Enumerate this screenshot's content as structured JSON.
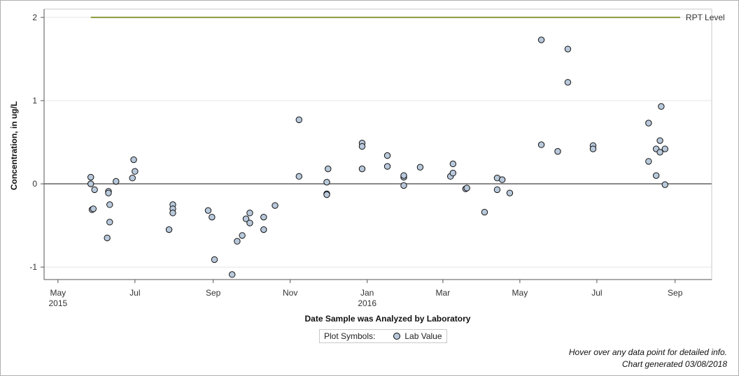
{
  "chart_data": {
    "type": "scatter",
    "title": "",
    "xlabel": "Date Sample was Analyzed by Laboratory",
    "ylabel": "Concentration, in ug/L",
    "xlim": [
      "2015-04-20",
      "2016-09-30"
    ],
    "ylim": [
      -1.15,
      2.1
    ],
    "y_ticks": [
      -1,
      0,
      1,
      2
    ],
    "x_ticks": [
      {
        "date": "2015-05-01",
        "label": "May",
        "sublabel": "2015"
      },
      {
        "date": "2015-07-01",
        "label": "Jul",
        "sublabel": ""
      },
      {
        "date": "2015-09-01",
        "label": "Sep",
        "sublabel": ""
      },
      {
        "date": "2015-11-01",
        "label": "Nov",
        "sublabel": ""
      },
      {
        "date": "2016-01-01",
        "label": "Jan",
        "sublabel": "2016"
      },
      {
        "date": "2016-03-01",
        "label": "Mar",
        "sublabel": ""
      },
      {
        "date": "2016-05-01",
        "label": "May",
        "sublabel": ""
      },
      {
        "date": "2016-07-01",
        "label": "Jul",
        "sublabel": ""
      },
      {
        "date": "2016-09-01",
        "label": "Sep",
        "sublabel": ""
      }
    ],
    "grid": "horizontal",
    "reference_lines": [
      {
        "name": "RPT Level",
        "y": 2.0,
        "x_start": "2015-05-27",
        "x_end": "2016-09-05",
        "color": "#8a9a3a"
      },
      {
        "name": "",
        "y": 0,
        "color": "#888888"
      }
    ],
    "series": [
      {
        "name": "Lab Value",
        "marker": "circle",
        "color": "#b9c9dc",
        "points": [
          [
            "2015-05-27",
            0.08
          ],
          [
            "2015-05-27",
            0.0
          ],
          [
            "2015-05-28",
            -0.31
          ],
          [
            "2015-05-29",
            -0.3
          ],
          [
            "2015-05-30",
            -0.07
          ],
          [
            "2015-06-09",
            -0.65
          ],
          [
            "2015-06-10",
            -0.09
          ],
          [
            "2015-06-10",
            -0.11
          ],
          [
            "2015-06-11",
            -0.25
          ],
          [
            "2015-06-11",
            -0.46
          ],
          [
            "2015-06-16",
            0.03
          ],
          [
            "2015-06-29",
            0.07
          ],
          [
            "2015-06-30",
            0.29
          ],
          [
            "2015-07-01",
            0.15
          ],
          [
            "2015-07-28",
            -0.55
          ],
          [
            "2015-07-31",
            -0.25
          ],
          [
            "2015-07-31",
            -0.3
          ],
          [
            "2015-07-31",
            -0.35
          ],
          [
            "2015-08-28",
            -0.32
          ],
          [
            "2015-08-31",
            -0.4
          ],
          [
            "2015-09-02",
            -0.91
          ],
          [
            "2015-09-16",
            -1.09
          ],
          [
            "2015-09-20",
            -0.69
          ],
          [
            "2015-09-24",
            -0.62
          ],
          [
            "2015-09-27",
            -0.42
          ],
          [
            "2015-09-30",
            -0.35
          ],
          [
            "2015-09-30",
            -0.47
          ],
          [
            "2015-10-11",
            -0.4
          ],
          [
            "2015-10-11",
            -0.55
          ],
          [
            "2015-10-20",
            -0.26
          ],
          [
            "2015-11-08",
            0.77
          ],
          [
            "2015-11-08",
            0.09
          ],
          [
            "2015-11-30",
            0.02
          ],
          [
            "2015-11-30",
            -0.12
          ],
          [
            "2015-11-30",
            -0.13
          ],
          [
            "2015-12-01",
            0.18
          ],
          [
            "2015-12-28",
            0.49
          ],
          [
            "2015-12-28",
            0.45
          ],
          [
            "2015-12-28",
            0.18
          ],
          [
            "2016-01-17",
            0.34
          ],
          [
            "2016-01-17",
            0.21
          ],
          [
            "2016-01-30",
            0.08
          ],
          [
            "2016-01-30",
            0.1
          ],
          [
            "2016-01-30",
            -0.02
          ],
          [
            "2016-02-12",
            0.2
          ],
          [
            "2016-03-07",
            0.09
          ],
          [
            "2016-03-09",
            0.24
          ],
          [
            "2016-03-09",
            0.13
          ],
          [
            "2016-03-19",
            -0.06
          ],
          [
            "2016-03-20",
            -0.05
          ],
          [
            "2016-04-03",
            -0.34
          ],
          [
            "2016-04-13",
            0.07
          ],
          [
            "2016-04-13",
            -0.07
          ],
          [
            "2016-04-17",
            0.05
          ],
          [
            "2016-04-23",
            -0.11
          ],
          [
            "2016-05-18",
            1.73
          ],
          [
            "2016-05-18",
            0.47
          ],
          [
            "2016-05-31",
            0.39
          ],
          [
            "2016-06-08",
            1.62
          ],
          [
            "2016-06-08",
            1.22
          ],
          [
            "2016-06-28",
            0.46
          ],
          [
            "2016-06-28",
            0.42
          ],
          [
            "2016-08-11",
            0.73
          ],
          [
            "2016-08-11",
            0.27
          ],
          [
            "2016-08-17",
            0.42
          ],
          [
            "2016-08-17",
            0.1
          ],
          [
            "2016-08-20",
            0.52
          ],
          [
            "2016-08-20",
            0.38
          ],
          [
            "2016-08-21",
            0.93
          ],
          [
            "2016-08-24",
            0.42
          ],
          [
            "2016-08-24",
            -0.01
          ]
        ]
      }
    ]
  },
  "legend": {
    "title": "Plot Symbols:",
    "label": "Lab Value"
  },
  "footnotes": {
    "hover": "Hover over any data point for detailed info.",
    "generated": "Chart generated 03/08/2018"
  }
}
